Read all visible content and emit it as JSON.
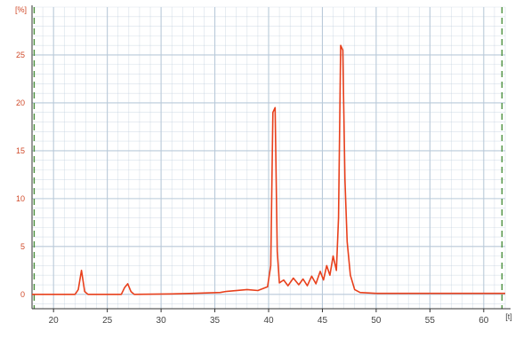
{
  "chart_data": {
    "type": "line",
    "title": "",
    "xlabel": "",
    "ylabel": "",
    "y_unit_label": "[%]",
    "x_unit_label": "[t]",
    "xlim": [
      18,
      62
    ],
    "ylim": [
      -1.5,
      30
    ],
    "x_ticks": [
      "20",
      "25",
      "30",
      "35",
      "40",
      "45",
      "50",
      "55",
      "60"
    ],
    "y_ticks": [
      "0",
      "5",
      "10",
      "15",
      "20",
      "25"
    ],
    "x_tick_values": [
      20,
      25,
      30,
      35,
      40,
      45,
      50,
      55,
      60
    ],
    "y_tick_values": [
      0,
      5,
      10,
      15,
      20,
      25
    ],
    "grid": true,
    "markers": [
      18.2,
      61.7
    ],
    "colors": {
      "series": "#e8401c",
      "grid": "#b9c9d9",
      "marker": "#4a8f3c",
      "axis": "#333333",
      "tick_text": "#444444",
      "unit_text": "#d04a2a"
    },
    "series": [
      {
        "values": [
          [
            18.0,
            0.0
          ],
          [
            22.0,
            0.0
          ],
          [
            22.3,
            0.5
          ],
          [
            22.6,
            2.5
          ],
          [
            22.9,
            0.3
          ],
          [
            23.2,
            0.0
          ],
          [
            26.3,
            0.0
          ],
          [
            26.6,
            0.7
          ],
          [
            26.9,
            1.1
          ],
          [
            27.2,
            0.3
          ],
          [
            27.5,
            0.0
          ],
          [
            31.0,
            0.05
          ],
          [
            33.0,
            0.1
          ],
          [
            35.5,
            0.2
          ],
          [
            36.0,
            0.3
          ],
          [
            38.0,
            0.5
          ],
          [
            39.0,
            0.4
          ],
          [
            39.9,
            0.8
          ],
          [
            40.2,
            3.0
          ],
          [
            40.4,
            19.0
          ],
          [
            40.6,
            19.5
          ],
          [
            40.8,
            4.5
          ],
          [
            41.0,
            1.2
          ],
          [
            41.4,
            1.5
          ],
          [
            41.8,
            0.9
          ],
          [
            42.3,
            1.7
          ],
          [
            42.8,
            1.0
          ],
          [
            43.2,
            1.6
          ],
          [
            43.6,
            0.9
          ],
          [
            44.0,
            1.9
          ],
          [
            44.4,
            1.1
          ],
          [
            44.8,
            2.4
          ],
          [
            45.1,
            1.5
          ],
          [
            45.4,
            3.0
          ],
          [
            45.7,
            2.0
          ],
          [
            46.0,
            4.0
          ],
          [
            46.3,
            2.5
          ],
          [
            46.5,
            8.0
          ],
          [
            46.7,
            26.0
          ],
          [
            46.9,
            25.5
          ],
          [
            47.1,
            12.0
          ],
          [
            47.3,
            5.5
          ],
          [
            47.6,
            2.0
          ],
          [
            48.0,
            0.5
          ],
          [
            48.5,
            0.2
          ],
          [
            50.0,
            0.1
          ],
          [
            55.0,
            0.1
          ],
          [
            60.0,
            0.1
          ],
          [
            62.0,
            0.1
          ]
        ]
      }
    ]
  }
}
